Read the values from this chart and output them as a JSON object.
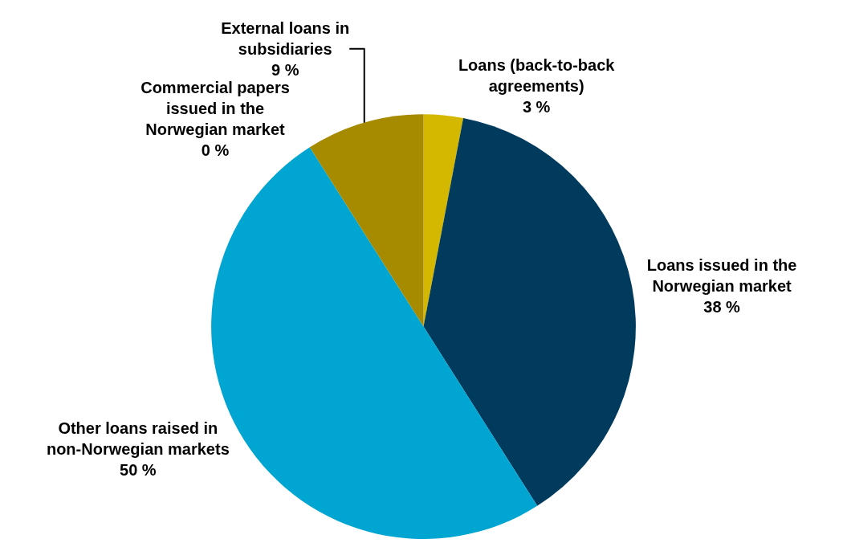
{
  "chart_data": {
    "type": "pie",
    "categories": [
      "Loans (back-to-back agreements)",
      "Loans issued in the Norwegian market",
      "Other loans raised in non-Norwegian markets",
      "Commercial papers issued in the Norwegian market",
      "External loans in subsidiaries"
    ],
    "values": [
      3,
      38,
      50,
      0,
      9
    ],
    "value_labels": [
      "3 %",
      "38 %",
      "50 %",
      "0 %",
      "9 %"
    ],
    "colors": [
      "#d4b800",
      "#003a5d",
      "#00a5d2",
      "#7f6a00",
      "#a68a00"
    ],
    "legend": false
  }
}
